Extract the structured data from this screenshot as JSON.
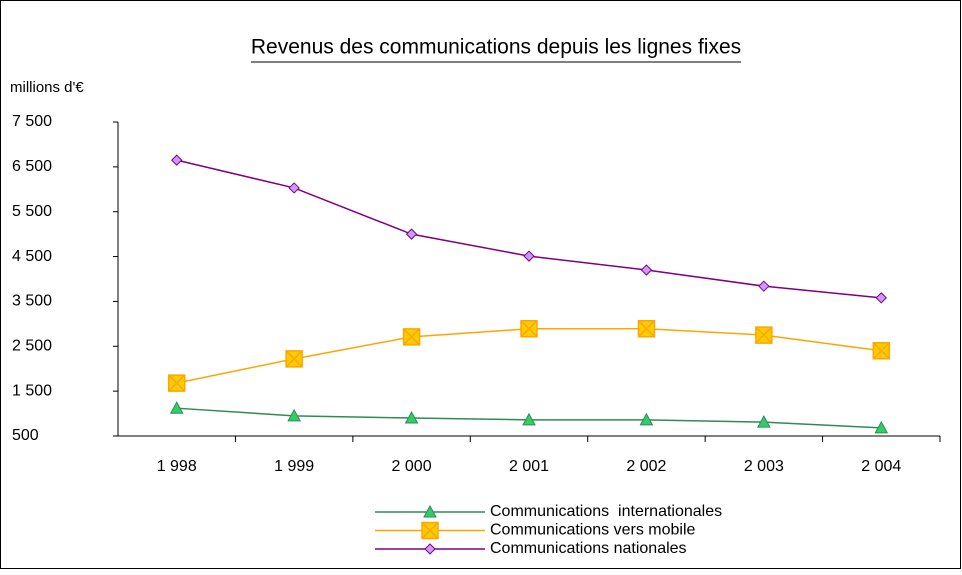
{
  "chart_data": {
    "type": "line",
    "title": "Revenus des communications depuis les lignes fixes",
    "y_label": "millions d'€",
    "categories": [
      "1 998",
      "1 999",
      "2 000",
      "2 001",
      "2 002",
      "2 003",
      "2 004"
    ],
    "series": [
      {
        "name": "Communications  internationales",
        "color": "#2e8b57",
        "marker": "triangle",
        "marker_color": "#33cc66",
        "values": [
          1120,
          950,
          900,
          860,
          860,
          810,
          680
        ]
      },
      {
        "name": "Communications vers mobile",
        "color": "#ffa500",
        "marker": "square-x",
        "marker_color": "#ffcc00",
        "values": [
          1680,
          2220,
          2710,
          2890,
          2890,
          2750,
          2400
        ]
      },
      {
        "name": "Communications nationales",
        "color": "#800080",
        "marker": "diamond",
        "marker_color": "#cc99ff",
        "values": [
          6650,
          6030,
          5000,
          4510,
          4200,
          3840,
          3580
        ]
      }
    ],
    "ylim": [
      500,
      7500
    ],
    "yticks": [
      500,
      {
        "value": 1500,
        "label": "1 500"
      },
      {
        "value": 2500,
        "label": "2 500"
      },
      {
        "value": 3500,
        "label": "3 500"
      },
      {
        "value": 4500,
        "label": "4 500"
      },
      {
        "value": 5500,
        "label": "5 500"
      },
      {
        "value": 6500,
        "label": "6 500"
      },
      {
        "value": 7500,
        "label": "7 500"
      }
    ],
    "grid": false
  }
}
